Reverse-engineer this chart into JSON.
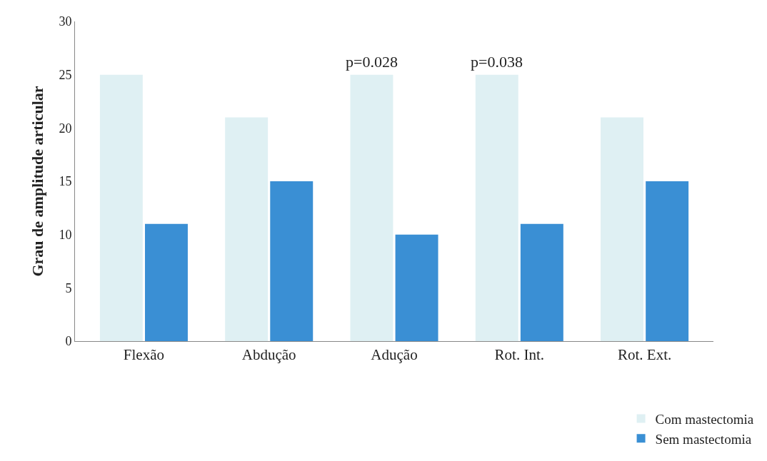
{
  "chart_data": {
    "type": "bar",
    "ylabel": "Grau de amplitude articular",
    "categories": [
      "Flexão",
      "Abdução",
      "Adução",
      "Rot. Int.",
      "Rot. Ext."
    ],
    "series": [
      {
        "name": "Com mastectomia",
        "color": "#dff0f3",
        "values": [
          25,
          21,
          25,
          25,
          21
        ]
      },
      {
        "name": "Sem mastectomia",
        "color": "#3a8fd4",
        "values": [
          11,
          15,
          10,
          11,
          15
        ]
      }
    ],
    "ylim": [
      0,
      30
    ],
    "yticks": [
      0,
      5,
      10,
      15,
      20,
      25,
      30
    ],
    "legend": "bottom right",
    "annotations": [
      {
        "text": "p=0.028",
        "x": "Adução",
        "y": 25
      },
      {
        "text": "p=0.038",
        "x": "Rot. Int.",
        "y": 25
      }
    ]
  }
}
